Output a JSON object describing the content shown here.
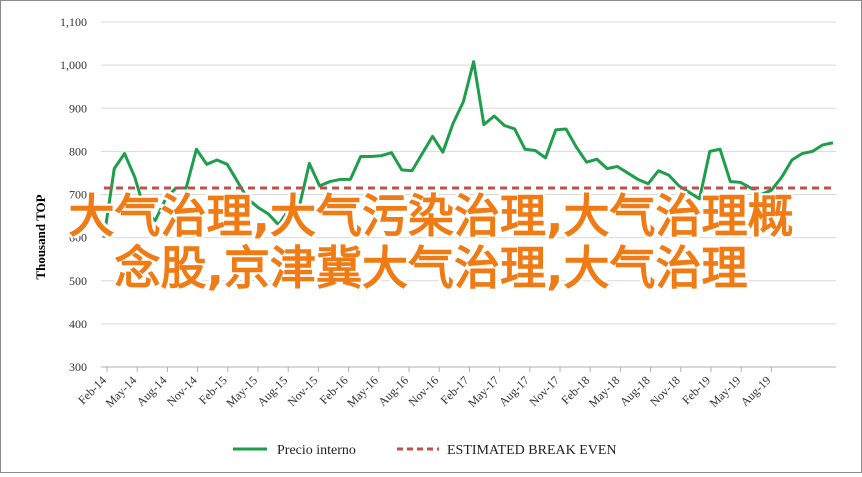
{
  "chart_data": {
    "type": "line",
    "ylabel": "Thousand TOP",
    "ylim": [
      300,
      1100
    ],
    "yticks": [
      300,
      400,
      500,
      600,
      700,
      800,
      900,
      1000,
      1100
    ],
    "ytick_labels": [
      "300",
      "400",
      "500",
      "600",
      "700",
      "800",
      "900",
      "1,000",
      "1,100"
    ],
    "xtick_labels": [
      "Feb-14",
      "May-14",
      "Aug-14",
      "Nov-14",
      "Feb-15",
      "May-15",
      "Aug-15",
      "Nov-15",
      "Feb-16",
      "May-16",
      "Aug-16",
      "Nov-16",
      "Feb-17",
      "May-17",
      "Aug-17",
      "Nov-17",
      "Feb-18",
      "May-18",
      "Aug-18",
      "Nov-18",
      "Feb-19",
      "May-19",
      "Aug-19"
    ],
    "grid": "horizontal",
    "legend_position": "bottom",
    "series": [
      {
        "name": "Precio interno",
        "color": "#1e9e4a",
        "style": "solid",
        "values": [
          600,
          760,
          795,
          740,
          660,
          640,
          690,
          715,
          715,
          805,
          770,
          780,
          770,
          730,
          690,
          670,
          655,
          630,
          665,
          670,
          772,
          720,
          730,
          735,
          735,
          788,
          788,
          790,
          797,
          757,
          755,
          795,
          835,
          798,
          865,
          915,
          1008,
          862,
          882,
          860,
          852,
          805,
          802,
          785,
          850,
          852,
          810,
          775,
          782,
          760,
          765,
          750,
          735,
          725,
          755,
          745,
          720,
          705,
          690,
          800,
          805,
          730,
          728,
          715,
          700,
          710,
          740,
          780,
          795,
          800,
          815,
          820
        ]
      },
      {
        "name": "ESTIMATED BREAK EVEN",
        "color": "#c0504d",
        "style": "dashed",
        "values": [
          715,
          715
        ]
      }
    ]
  },
  "overlay": {
    "line1": "大气治理,大气污染治理,大气治理概",
    "line2": "念股,京津冀大气治理,大气治理"
  }
}
